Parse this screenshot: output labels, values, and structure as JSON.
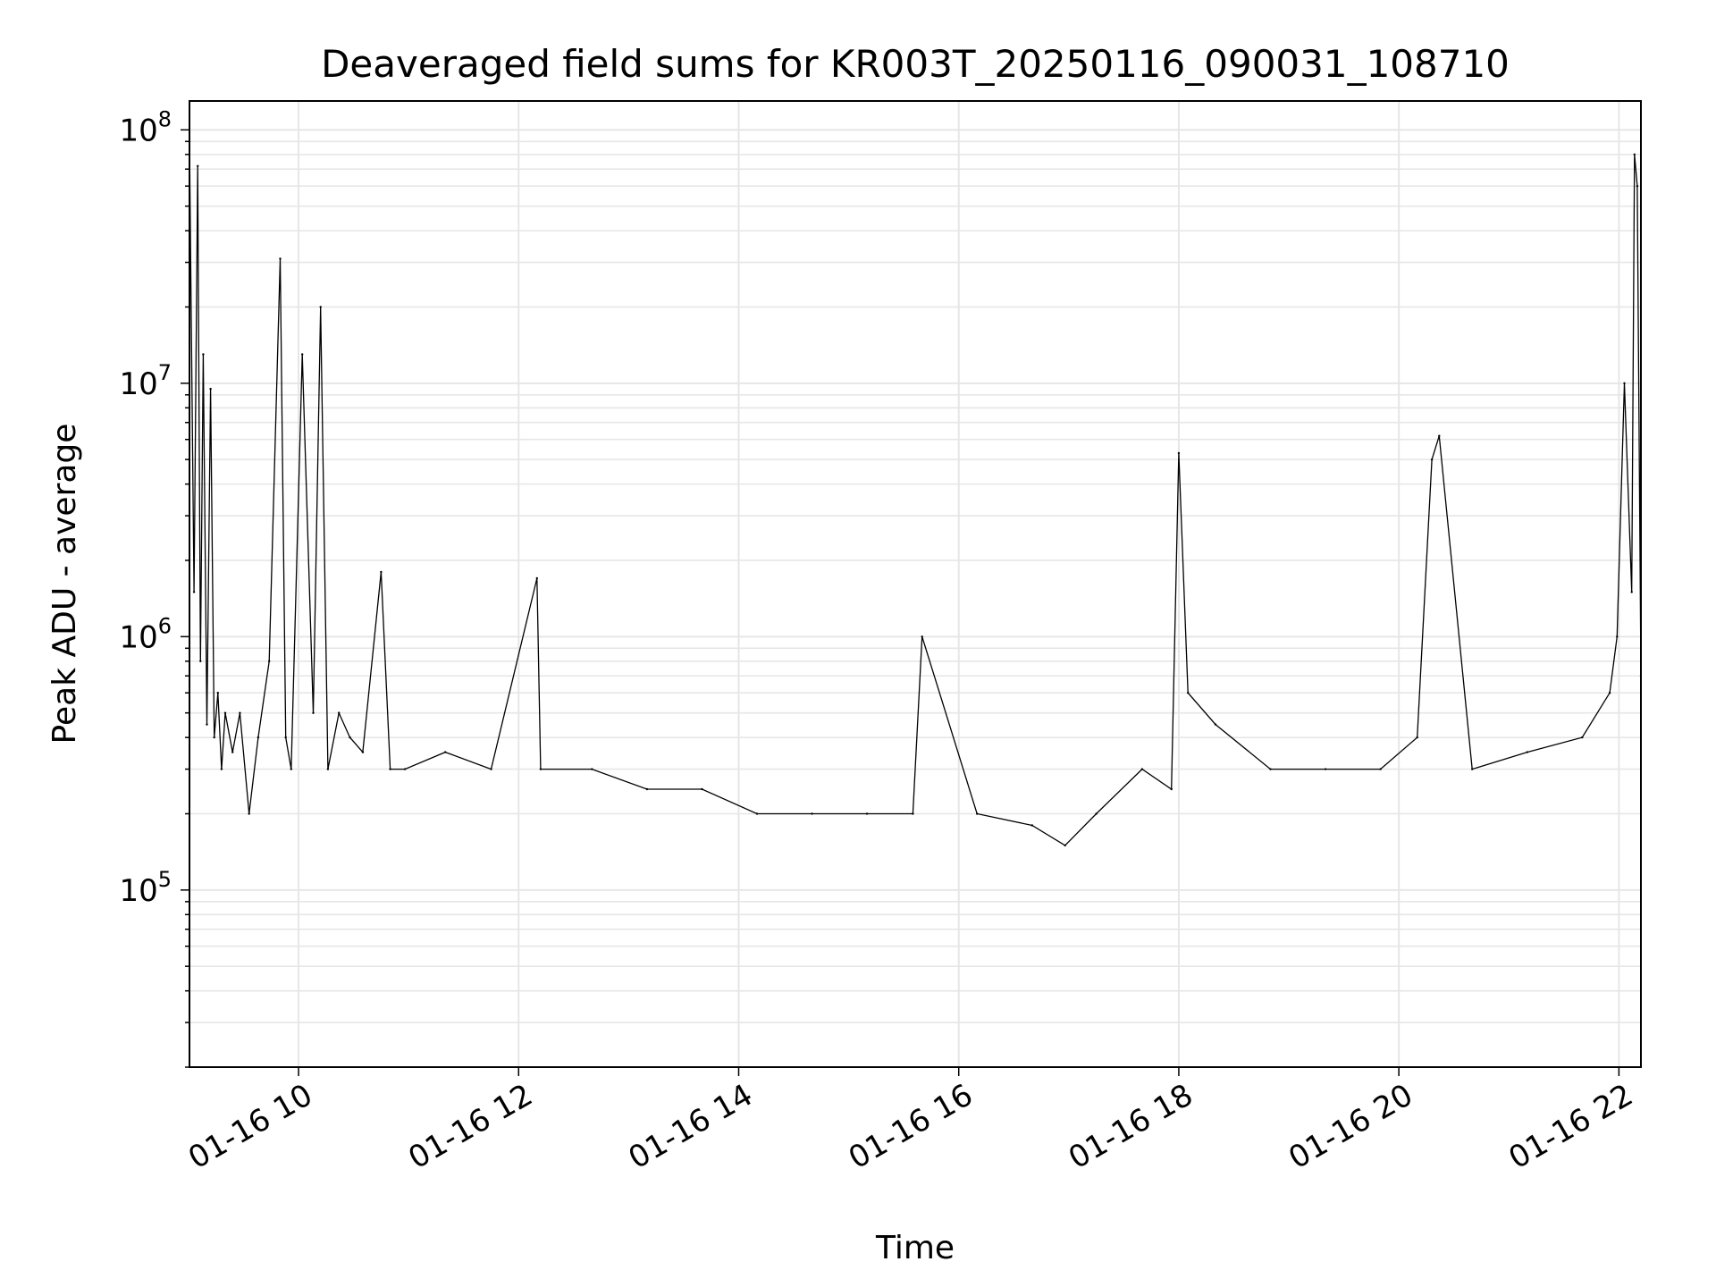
{
  "chart_data": {
    "type": "line",
    "title": "Deaveraged field sums for KR003T_20250116_090031_108710",
    "xlabel": "Time",
    "ylabel": "Peak ADU - average",
    "yscale": "log",
    "ylim": [
      20000,
      130000000
    ],
    "xlim": [
      "2025-01-16T09:00:31",
      "2025-01-16T22:12:00"
    ],
    "grid": true,
    "line_color": "#000000",
    "x_ticks": [
      {
        "label": "01-16 10",
        "time": "2025-01-16T10:00:00"
      },
      {
        "label": "01-16 12",
        "time": "2025-01-16T12:00:00"
      },
      {
        "label": "01-16 14",
        "time": "2025-01-16T14:00:00"
      },
      {
        "label": "01-16 16",
        "time": "2025-01-16T16:00:00"
      },
      {
        "label": "01-16 18",
        "time": "2025-01-16T18:00:00"
      },
      {
        "label": "01-16 20",
        "time": "2025-01-16T20:00:00"
      },
      {
        "label": "01-16 22",
        "time": "2025-01-16T22:00:00"
      }
    ],
    "y_ticks": [
      {
        "mantissa": "10",
        "exponent": "5",
        "value": 100000
      },
      {
        "mantissa": "10",
        "exponent": "6",
        "value": 1000000
      },
      {
        "mantissa": "10",
        "exponent": "7",
        "value": 10000000
      },
      {
        "mantissa": "10",
        "exponent": "8",
        "value": 100000000
      }
    ],
    "series": [
      {
        "x": [
          "2025-01-16T09:00:31",
          "2025-01-16T09:03:00",
          "2025-01-16T09:05:00",
          "2025-01-16T09:06:30",
          "2025-01-16T09:08:00",
          "2025-01-16T09:10:00",
          "2025-01-16T09:12:00",
          "2025-01-16T09:14:00",
          "2025-01-16T09:16:00",
          "2025-01-16T09:18:00",
          "2025-01-16T09:20:00",
          "2025-01-16T09:24:00",
          "2025-01-16T09:28:00",
          "2025-01-16T09:33:00",
          "2025-01-16T09:38:00",
          "2025-01-16T09:44:00",
          "2025-01-16T09:50:00",
          "2025-01-16T09:53:00",
          "2025-01-16T09:56:00",
          "2025-01-16T10:02:00",
          "2025-01-16T10:08:00",
          "2025-01-16T10:12:00",
          "2025-01-16T10:16:00",
          "2025-01-16T10:22:00",
          "2025-01-16T10:28:00",
          "2025-01-16T10:35:00",
          "2025-01-16T10:45:00",
          "2025-01-16T10:50:00",
          "2025-01-16T10:58:00",
          "2025-01-16T11:20:00",
          "2025-01-16T11:45:00",
          "2025-01-16T12:10:00",
          "2025-01-16T12:12:00",
          "2025-01-16T12:40:00",
          "2025-01-16T13:10:00",
          "2025-01-16T13:40:00",
          "2025-01-16T14:10:00",
          "2025-01-16T14:40:00",
          "2025-01-16T15:10:00",
          "2025-01-16T15:35:00",
          "2025-01-16T15:40:00",
          "2025-01-16T16:10:00",
          "2025-01-16T16:40:00",
          "2025-01-16T16:58:00",
          "2025-01-16T17:15:00",
          "2025-01-16T17:40:00",
          "2025-01-16T17:56:00",
          "2025-01-16T18:00:00",
          "2025-01-16T18:05:00",
          "2025-01-16T18:20:00",
          "2025-01-16T18:50:00",
          "2025-01-16T19:20:00",
          "2025-01-16T19:50:00",
          "2025-01-16T20:10:00",
          "2025-01-16T20:18:00",
          "2025-01-16T20:22:00",
          "2025-01-16T20:40:00",
          "2025-01-16T21:10:00",
          "2025-01-16T21:40:00",
          "2025-01-16T21:55:00",
          "2025-01-16T21:59:00",
          "2025-01-16T22:03:00",
          "2025-01-16T22:07:00",
          "2025-01-16T22:08:30",
          "2025-01-16T22:10:00",
          "2025-01-16T22:12:00"
        ],
        "y": [
          90000000,
          1500000,
          72000000,
          800000,
          13000000,
          450000,
          9500000,
          400000,
          600000,
          300000,
          500000,
          350000,
          500000,
          200000,
          400000,
          800000,
          31000000,
          400000,
          300000,
          13000000,
          500000,
          20000000,
          300000,
          500000,
          400000,
          350000,
          1800000,
          300000,
          300000,
          350000,
          300000,
          1700000,
          300000,
          300000,
          250000,
          250000,
          200000,
          200000,
          200000,
          200000,
          1000000,
          200000,
          180000,
          150000,
          200000,
          300000,
          250000,
          5300000,
          600000,
          450000,
          300000,
          300000,
          300000,
          400000,
          5000000,
          6200000,
          300000,
          350000,
          400000,
          600000,
          1000000,
          10000000,
          1500000,
          80000000,
          60000000,
          700000
        ]
      }
    ]
  }
}
